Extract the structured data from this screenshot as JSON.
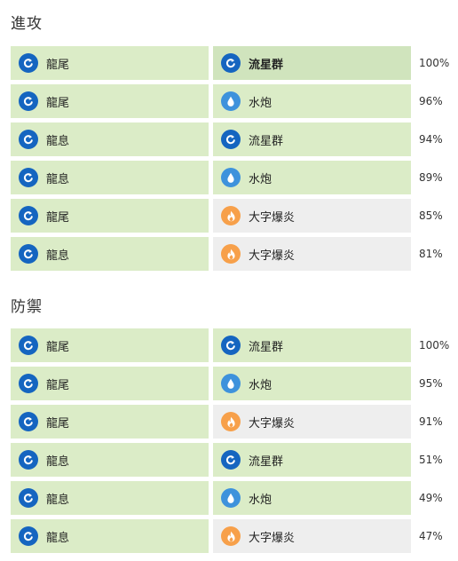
{
  "colors": {
    "cell_default": "#dbecc7",
    "cell_highlight": "#d0e4bd",
    "cell_neutral": "#eeeeee",
    "dragon_icon": "#1565c0",
    "water_icon": "#3e92dc",
    "fire_icon": "#f7a04a"
  },
  "sections": [
    {
      "title": "進攻",
      "rows": [
        {
          "fast": {
            "name": "龍尾",
            "type": "dragon"
          },
          "charged": {
            "name": "流星群",
            "type": "dragon",
            "highlight": true
          },
          "percent": "100%"
        },
        {
          "fast": {
            "name": "龍尾",
            "type": "dragon"
          },
          "charged": {
            "name": "水炮",
            "type": "water"
          },
          "percent": "96%"
        },
        {
          "fast": {
            "name": "龍息",
            "type": "dragon"
          },
          "charged": {
            "name": "流星群",
            "type": "dragon"
          },
          "percent": "94%"
        },
        {
          "fast": {
            "name": "龍息",
            "type": "dragon"
          },
          "charged": {
            "name": "水炮",
            "type": "water"
          },
          "percent": "89%"
        },
        {
          "fast": {
            "name": "龍尾",
            "type": "dragon"
          },
          "charged": {
            "name": "大字爆炎",
            "type": "fire"
          },
          "percent": "85%"
        },
        {
          "fast": {
            "name": "龍息",
            "type": "dragon"
          },
          "charged": {
            "name": "大字爆炎",
            "type": "fire"
          },
          "percent": "81%"
        }
      ]
    },
    {
      "title": "防禦",
      "rows": [
        {
          "fast": {
            "name": "龍尾",
            "type": "dragon"
          },
          "charged": {
            "name": "流星群",
            "type": "dragon"
          },
          "percent": "100%"
        },
        {
          "fast": {
            "name": "龍尾",
            "type": "dragon"
          },
          "charged": {
            "name": "水炮",
            "type": "water"
          },
          "percent": "95%"
        },
        {
          "fast": {
            "name": "龍尾",
            "type": "dragon"
          },
          "charged": {
            "name": "大字爆炎",
            "type": "fire"
          },
          "percent": "91%"
        },
        {
          "fast": {
            "name": "龍息",
            "type": "dragon"
          },
          "charged": {
            "name": "流星群",
            "type": "dragon"
          },
          "percent": "51%"
        },
        {
          "fast": {
            "name": "龍息",
            "type": "dragon"
          },
          "charged": {
            "name": "水炮",
            "type": "water"
          },
          "percent": "49%"
        },
        {
          "fast": {
            "name": "龍息",
            "type": "dragon"
          },
          "charged": {
            "name": "大字爆炎",
            "type": "fire"
          },
          "percent": "47%"
        }
      ]
    }
  ]
}
